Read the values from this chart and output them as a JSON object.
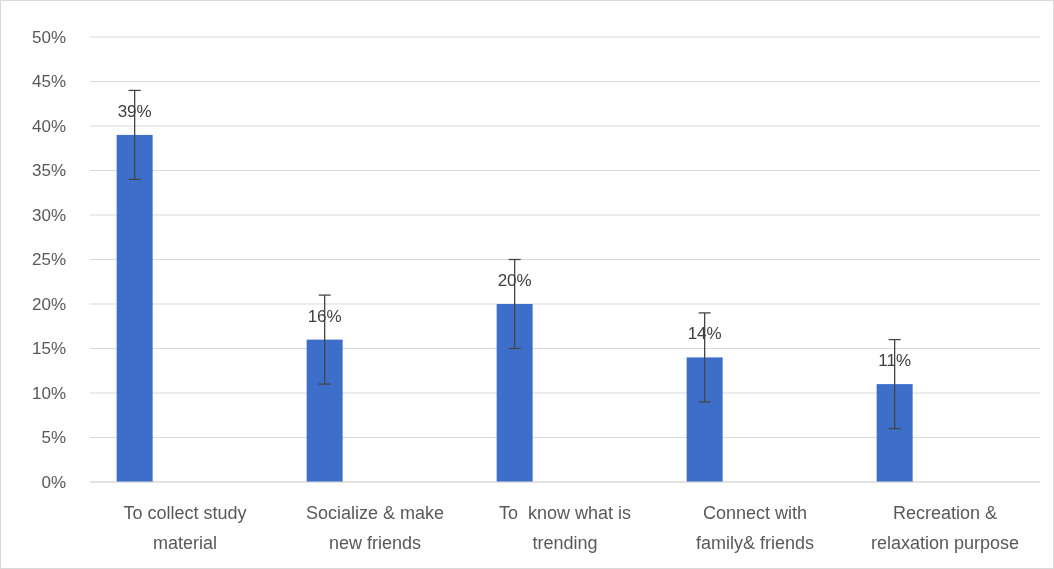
{
  "chart_data": {
    "type": "bar",
    "categories": [
      "To collect study material",
      "Socialize & make new friends",
      "To  know what is trending",
      "Connect with family& friends",
      "Recreation & relaxation purpose"
    ],
    "values": [
      39,
      16,
      20,
      14,
      11
    ],
    "errors": [
      5,
      5,
      5,
      5,
      5
    ],
    "value_labels": [
      "39%",
      "16%",
      "20%",
      "14%",
      "11%"
    ],
    "color": "#3d6fca",
    "ylim": [
      0,
      50
    ],
    "yticks": [
      {
        "value": 0,
        "label": "0%"
      },
      {
        "value": 5,
        "label": "5%"
      },
      {
        "value": 10,
        "label": "10%"
      },
      {
        "value": 15,
        "label": "15%"
      },
      {
        "value": 20,
        "label": "20%"
      },
      {
        "value": 25,
        "label": "25%"
      },
      {
        "value": 30,
        "label": "30%"
      },
      {
        "value": 35,
        "label": "35%"
      },
      {
        "value": 40,
        "label": "40%"
      },
      {
        "value": 45,
        "label": "45%"
      },
      {
        "value": 50,
        "label": "50%"
      }
    ],
    "grid": "y"
  }
}
